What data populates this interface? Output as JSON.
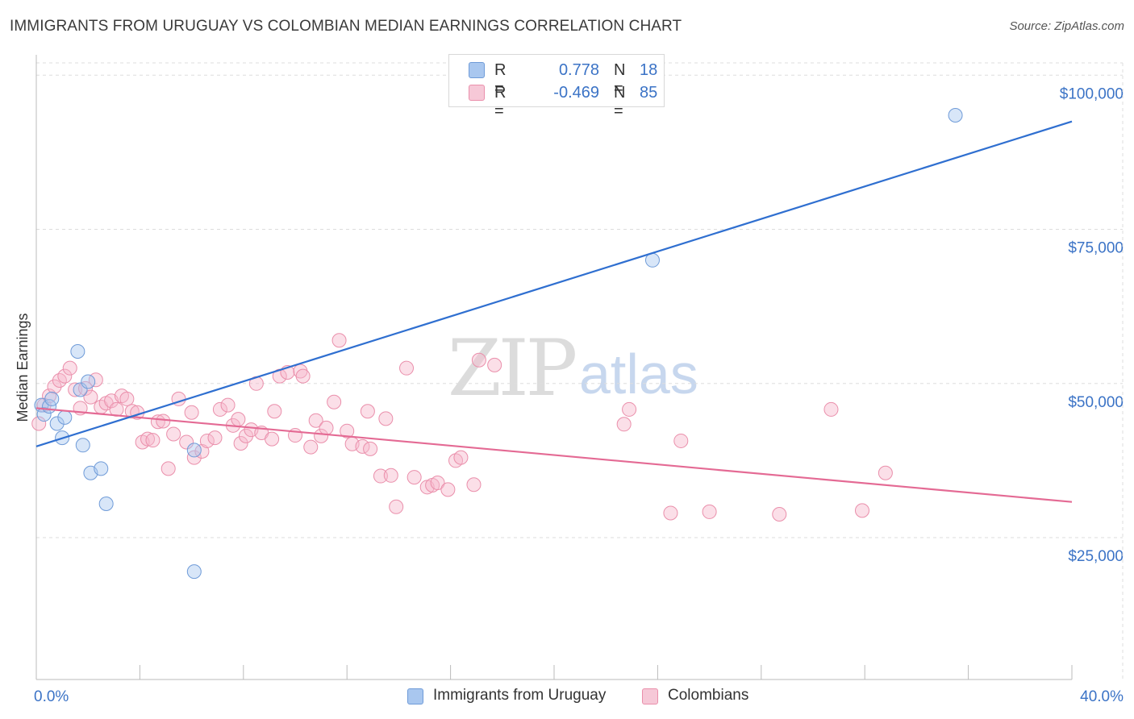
{
  "title": "IMMIGRANTS FROM URUGUAY VS COLOMBIAN MEDIAN EARNINGS CORRELATION CHART",
  "source": "Source: ZipAtlas.com",
  "watermark": {
    "zip": "ZIP",
    "atlas": "atlas"
  },
  "legend": {
    "rows": [
      {
        "r_label": "R =",
        "r_value": "0.778",
        "n_label": "N =",
        "n_value": "18"
      },
      {
        "r_label": "R =",
        "r_value": "-0.469",
        "n_label": "N =",
        "n_value": "85"
      }
    ]
  },
  "bottom_legend": [
    "Immigrants from Uruguay",
    "Colombians"
  ],
  "colors": {
    "blue_fill": "#a9c7ef",
    "blue_stroke": "#6f9bd8",
    "blue_line": "#2f6fd0",
    "pink_fill": "#f6b8cb",
    "pink_stroke": "#ea8fab",
    "pink_line": "#e46a94",
    "axis_label": "#3b73c6",
    "grid": "#dddddd"
  },
  "chart_data": {
    "type": "scatter",
    "title": "IMMIGRANTS FROM URUGUAY VS COLOMBIAN MEDIAN EARNINGS CORRELATION CHART",
    "xlabel": "",
    "ylabel": "Median Earnings",
    "xlim": [
      0,
      40
    ],
    "ylim": [
      2000,
      102000
    ],
    "x_tick_labels": [
      "0.0%",
      "40.0%"
    ],
    "y_ticks": [
      25000,
      50000,
      75000,
      100000
    ],
    "y_tick_labels": [
      "$25,000",
      "$50,000",
      "$75,000",
      "$100,000"
    ],
    "grid": true,
    "series": [
      {
        "name": "Immigrants from Uruguay",
        "color": "blue",
        "r": 0.778,
        "n": 18,
        "trend": {
          "x": [
            0,
            40
          ],
          "y": [
            39800,
            92500
          ]
        },
        "points": [
          [
            0.2,
            46500
          ],
          [
            0.3,
            45000
          ],
          [
            0.5,
            46300
          ],
          [
            0.6,
            47500
          ],
          [
            0.8,
            43500
          ],
          [
            1.0,
            41200
          ],
          [
            1.1,
            44500
          ],
          [
            1.6,
            55200
          ],
          [
            1.7,
            49000
          ],
          [
            1.8,
            40000
          ],
          [
            2.0,
            50300
          ],
          [
            2.1,
            35500
          ],
          [
            2.5,
            36200
          ],
          [
            2.7,
            30500
          ],
          [
            6.1,
            39200
          ],
          [
            6.1,
            19500
          ],
          [
            23.8,
            70000
          ],
          [
            35.5,
            93500
          ]
        ]
      },
      {
        "name": "Colombians",
        "color": "pink",
        "r": -0.469,
        "n": 85,
        "trend": {
          "x": [
            0,
            40
          ],
          "y": [
            46000,
            30800
          ]
        },
        "points": [
          [
            0.1,
            43500
          ],
          [
            0.3,
            46500
          ],
          [
            0.5,
            48000
          ],
          [
            0.7,
            49500
          ],
          [
            0.9,
            50500
          ],
          [
            1.1,
            51200
          ],
          [
            1.3,
            52500
          ],
          [
            1.5,
            49000
          ],
          [
            1.7,
            46000
          ],
          [
            1.9,
            49200
          ],
          [
            2.1,
            47800
          ],
          [
            2.3,
            50600
          ],
          [
            2.5,
            46200
          ],
          [
            2.7,
            46800
          ],
          [
            2.9,
            47200
          ],
          [
            3.1,
            45800
          ],
          [
            3.3,
            48000
          ],
          [
            3.5,
            47500
          ],
          [
            3.7,
            45500
          ],
          [
            3.9,
            45300
          ],
          [
            4.1,
            40500
          ],
          [
            4.3,
            41000
          ],
          [
            4.5,
            40800
          ],
          [
            4.7,
            43800
          ],
          [
            4.9,
            43900
          ],
          [
            5.1,
            36200
          ],
          [
            5.3,
            41800
          ],
          [
            5.5,
            47500
          ],
          [
            5.8,
            40500
          ],
          [
            6.0,
            45300
          ],
          [
            6.1,
            38000
          ],
          [
            6.4,
            39000
          ],
          [
            6.6,
            40700
          ],
          [
            6.9,
            41200
          ],
          [
            7.1,
            45800
          ],
          [
            7.4,
            46500
          ],
          [
            7.6,
            43200
          ],
          [
            7.8,
            44200
          ],
          [
            7.9,
            40300
          ],
          [
            8.1,
            41500
          ],
          [
            8.3,
            42500
          ],
          [
            8.5,
            50000
          ],
          [
            8.7,
            42000
          ],
          [
            9.1,
            41000
          ],
          [
            9.2,
            45500
          ],
          [
            9.4,
            51200
          ],
          [
            9.7,
            51800
          ],
          [
            10.0,
            41600
          ],
          [
            10.2,
            52000
          ],
          [
            10.3,
            51200
          ],
          [
            10.6,
            39700
          ],
          [
            10.8,
            44000
          ],
          [
            11.0,
            41500
          ],
          [
            11.2,
            42800
          ],
          [
            11.5,
            47000
          ],
          [
            11.7,
            57000
          ],
          [
            12.0,
            42300
          ],
          [
            12.2,
            40200
          ],
          [
            12.6,
            39800
          ],
          [
            12.9,
            39400
          ],
          [
            12.8,
            45500
          ],
          [
            13.3,
            35000
          ],
          [
            13.5,
            44300
          ],
          [
            13.7,
            35100
          ],
          [
            13.9,
            30000
          ],
          [
            14.3,
            52500
          ],
          [
            14.6,
            34800
          ],
          [
            15.1,
            33200
          ],
          [
            15.3,
            33500
          ],
          [
            15.5,
            33900
          ],
          [
            15.9,
            32800
          ],
          [
            16.2,
            37500
          ],
          [
            16.4,
            38000
          ],
          [
            16.9,
            33600
          ],
          [
            17.1,
            53800
          ],
          [
            17.7,
            53000
          ],
          [
            22.7,
            43400
          ],
          [
            22.9,
            45800
          ],
          [
            24.5,
            29000
          ],
          [
            24.9,
            40700
          ],
          [
            26.0,
            29200
          ],
          [
            28.7,
            28800
          ],
          [
            30.7,
            45800
          ],
          [
            31.9,
            29400
          ],
          [
            32.8,
            35500
          ]
        ]
      }
    ]
  }
}
